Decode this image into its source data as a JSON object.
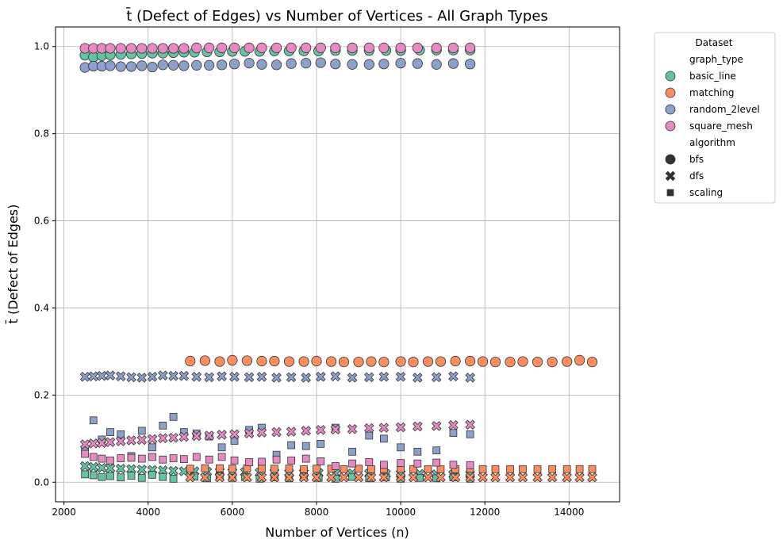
{
  "chart_data": {
    "type": "scatter",
    "title": "t̄ (Defect of Edges) vs Number of Vertices - All Graph Types",
    "xlabel": "Number of Vertices (n)",
    "ylabel": "t̄ (Defect of Edges)",
    "xlim": [
      1800,
      15200
    ],
    "ylim": [
      -0.045,
      1.045
    ],
    "xticks": [
      2000,
      4000,
      6000,
      8000,
      10000,
      12000,
      14000
    ],
    "yticks": [
      0.0,
      0.2,
      0.4,
      0.6,
      0.8,
      1.0
    ],
    "xtick_labels": [
      "2000",
      "4000",
      "6000",
      "8000",
      "10000",
      "12000",
      "14000"
    ],
    "ytick_labels": [
      "0.0",
      "0.2",
      "0.4",
      "0.6",
      "0.8",
      "1.0"
    ],
    "grid": true,
    "legend": {
      "placement": "outside-right-top",
      "title": "Dataset",
      "hue_title": "graph_type",
      "style_title": "algorithm",
      "hue_entries": [
        {
          "label": "basic_line",
          "color": "#66c2a5"
        },
        {
          "label": "matching",
          "color": "#fc8d62"
        },
        {
          "label": "random_2level",
          "color": "#8da0cb"
        },
        {
          "label": "square_mesh",
          "color": "#e78ac3"
        }
      ],
      "style_entries": [
        {
          "label": "bfs",
          "marker": "circle"
        },
        {
          "label": "dfs",
          "marker": "x"
        },
        {
          "label": "scaling",
          "marker": "square"
        }
      ]
    },
    "series": [
      {
        "graph_type": "basic_line",
        "algorithm": "bfs",
        "color": "#66c2a5",
        "marker": "circle",
        "x": [
          2500,
          2700,
          2900,
          3100,
          3350,
          3600,
          3850,
          4100,
          4350,
          4600,
          4850,
          5100,
          5400,
          5700,
          6000,
          6300,
          6650,
          7000,
          7350,
          7700,
          8050,
          8450,
          8850,
          9250,
          9650,
          10000,
          10450,
          10850,
          11250,
          11650
        ],
        "y": [
          0.98,
          0.976,
          0.979,
          0.981,
          0.982,
          0.983,
          0.984,
          0.985,
          0.985,
          0.986,
          0.987,
          0.987,
          0.988,
          0.988,
          0.989,
          0.989,
          0.989,
          0.99,
          0.99,
          0.99,
          0.99,
          0.991,
          0.991,
          0.991,
          0.991,
          0.991,
          0.992,
          0.992,
          0.992,
          0.992
        ]
      },
      {
        "graph_type": "basic_line",
        "algorithm": "dfs",
        "color": "#66c2a5",
        "marker": "x",
        "x": [
          2500,
          2700,
          2900,
          3100,
          3350,
          3600,
          3850,
          4100,
          4350,
          4600,
          4850,
          5100,
          5400,
          5700,
          6000,
          6300,
          6650,
          7000,
          7350,
          7700,
          8050,
          8450,
          8850,
          9250,
          9650,
          10000,
          10450,
          10850,
          11250,
          11650
        ],
        "y": [
          0.037,
          0.035,
          0.033,
          0.032,
          0.031,
          0.03,
          0.029,
          0.028,
          0.027,
          0.026,
          0.025,
          0.025,
          0.024,
          0.024,
          0.023,
          0.023,
          0.022,
          0.022,
          0.021,
          0.021,
          0.021,
          0.02,
          0.02,
          0.02,
          0.019,
          0.019,
          0.019,
          0.018,
          0.018,
          0.018
        ]
      },
      {
        "graph_type": "basic_line",
        "algorithm": "scaling",
        "color": "#66c2a5",
        "marker": "square",
        "x": [
          2500,
          2700,
          2900,
          3100,
          3350,
          3600,
          3850,
          4100,
          4350,
          4600,
          5100,
          5400,
          5700,
          6000,
          6300,
          6650,
          7000,
          7350,
          7700,
          8050,
          8450,
          8850,
          9250,
          9650,
          10000,
          10450,
          10850,
          11250,
          11650
        ],
        "y": [
          0.018,
          0.016,
          0.012,
          0.014,
          0.011,
          0.015,
          0.01,
          0.017,
          0.012,
          0.008,
          0.013,
          0.009,
          0.014,
          0.01,
          0.012,
          0.008,
          0.011,
          0.009,
          0.013,
          0.01,
          0.008,
          0.012,
          0.009,
          0.011,
          0.008,
          0.01,
          0.009,
          0.011,
          0.008
        ]
      },
      {
        "graph_type": "matching",
        "algorithm": "bfs",
        "color": "#fc8d62",
        "marker": "circle",
        "x": [
          5000,
          5350,
          5700,
          6000,
          6350,
          6700,
          7000,
          7350,
          7700,
          8000,
          8350,
          8650,
          9000,
          9300,
          9600,
          10000,
          10300,
          10650,
          10950,
          11300,
          11650,
          11950,
          12250,
          12600,
          12900,
          13250,
          13600,
          13950,
          14250,
          14550
        ],
        "y": [
          0.278,
          0.279,
          0.277,
          0.28,
          0.279,
          0.278,
          0.278,
          0.277,
          0.277,
          0.278,
          0.277,
          0.276,
          0.276,
          0.277,
          0.276,
          0.277,
          0.276,
          0.277,
          0.277,
          0.278,
          0.278,
          0.277,
          0.276,
          0.276,
          0.277,
          0.276,
          0.276,
          0.277,
          0.28,
          0.276
        ]
      },
      {
        "graph_type": "matching",
        "algorithm": "dfs",
        "color": "#fc8d62",
        "marker": "x",
        "x": [
          5000,
          5350,
          5700,
          6000,
          6350,
          6700,
          7000,
          7350,
          7700,
          8000,
          8350,
          8650,
          9000,
          9300,
          9600,
          10000,
          10300,
          10650,
          10950,
          11300,
          11650,
          11950,
          12250,
          12600,
          12900,
          13250,
          13600,
          13950,
          14250,
          14550
        ],
        "y": [
          0.011,
          0.011,
          0.011,
          0.011,
          0.011,
          0.011,
          0.011,
          0.011,
          0.011,
          0.011,
          0.011,
          0.011,
          0.011,
          0.011,
          0.011,
          0.011,
          0.011,
          0.011,
          0.011,
          0.011,
          0.011,
          0.011,
          0.011,
          0.011,
          0.011,
          0.011,
          0.011,
          0.011,
          0.011,
          0.011
        ]
      },
      {
        "graph_type": "matching",
        "algorithm": "scaling",
        "color": "#fc8d62",
        "marker": "square",
        "x": [
          5000,
          5350,
          5700,
          6000,
          6350,
          6700,
          7000,
          7350,
          7700,
          8000,
          8350,
          8650,
          9000,
          9300,
          9600,
          10000,
          10300,
          10650,
          10950,
          11300,
          11650,
          11950,
          12250,
          12600,
          12900,
          13250,
          13600,
          13950,
          14250,
          14550
        ],
        "y": [
          0.031,
          0.032,
          0.032,
          0.031,
          0.032,
          0.031,
          0.031,
          0.031,
          0.03,
          0.031,
          0.031,
          0.03,
          0.031,
          0.03,
          0.03,
          0.031,
          0.03,
          0.03,
          0.03,
          0.03,
          0.031,
          0.03,
          0.03,
          0.03,
          0.03,
          0.03,
          0.03,
          0.03,
          0.03,
          0.03
        ]
      },
      {
        "graph_type": "random_2level",
        "algorithm": "bfs",
        "color": "#8da0cb",
        "marker": "circle",
        "x": [
          2500,
          2700,
          2900,
          3100,
          3350,
          3600,
          3850,
          4100,
          4350,
          4600,
          4850,
          5150,
          5450,
          5750,
          6050,
          6400,
          6700,
          7050,
          7400,
          7750,
          8100,
          8450,
          8850,
          9250,
          9600,
          10000,
          10400,
          10850,
          11250,
          11650
        ],
        "y": [
          0.952,
          0.955,
          0.955,
          0.956,
          0.954,
          0.954,
          0.956,
          0.953,
          0.958,
          0.957,
          0.956,
          0.957,
          0.957,
          0.958,
          0.96,
          0.962,
          0.959,
          0.958,
          0.961,
          0.962,
          0.963,
          0.96,
          0.959,
          0.959,
          0.96,
          0.962,
          0.961,
          0.959,
          0.961,
          0.96
        ]
      },
      {
        "graph_type": "random_2level",
        "algorithm": "dfs",
        "color": "#8da0cb",
        "marker": "x",
        "x": [
          2500,
          2700,
          2900,
          3100,
          3350,
          3600,
          3850,
          4100,
          4350,
          4600,
          4850,
          5150,
          5450,
          5750,
          6050,
          6400,
          6700,
          7050,
          7400,
          7750,
          8100,
          8450,
          8850,
          9250,
          9600,
          10000,
          10400,
          10850,
          11250,
          11650
        ],
        "y": [
          0.242,
          0.243,
          0.244,
          0.245,
          0.243,
          0.241,
          0.24,
          0.242,
          0.245,
          0.244,
          0.244,
          0.242,
          0.241,
          0.243,
          0.242,
          0.241,
          0.242,
          0.24,
          0.241,
          0.24,
          0.242,
          0.243,
          0.24,
          0.241,
          0.242,
          0.242,
          0.24,
          0.241,
          0.243,
          0.24
        ]
      },
      {
        "graph_type": "random_2level",
        "algorithm": "scaling",
        "color": "#8da0cb",
        "marker": "square",
        "x": [
          2500,
          2700,
          2900,
          3100,
          3350,
          3600,
          3850,
          4100,
          4350,
          4600,
          4850,
          5150,
          5450,
          5750,
          6050,
          6400,
          6700,
          7050,
          7400,
          7750,
          8100,
          8450,
          8850,
          9250,
          9600,
          10000,
          10400,
          10850,
          11250,
          11650
        ],
        "y": [
          0.073,
          0.142,
          0.098,
          0.115,
          0.11,
          0.06,
          0.118,
          0.08,
          0.13,
          0.15,
          0.115,
          0.112,
          0.105,
          0.08,
          0.095,
          0.12,
          0.125,
          0.063,
          0.085,
          0.083,
          0.088,
          0.125,
          0.07,
          0.107,
          0.1,
          0.08,
          0.07,
          0.073,
          0.113,
          0.11
        ]
      },
      {
        "graph_type": "square_mesh",
        "algorithm": "bfs",
        "color": "#e78ac3",
        "marker": "circle",
        "x": [
          2500,
          2700,
          2900,
          3100,
          3350,
          3600,
          3850,
          4100,
          4350,
          4600,
          4850,
          5150,
          5450,
          5750,
          6050,
          6400,
          6700,
          7050,
          7400,
          7750,
          8100,
          8450,
          8850,
          9250,
          9600,
          10000,
          10400,
          10850,
          11250,
          11650
        ],
        "y": [
          0.996,
          0.996,
          0.996,
          0.996,
          0.996,
          0.996,
          0.996,
          0.996,
          0.996,
          0.996,
          0.996,
          0.997,
          0.997,
          0.997,
          0.997,
          0.997,
          0.997,
          0.997,
          0.997,
          0.997,
          0.997,
          0.997,
          0.997,
          0.997,
          0.997,
          0.997,
          0.997,
          0.997,
          0.997,
          0.997
        ]
      },
      {
        "graph_type": "square_mesh",
        "algorithm": "dfs",
        "color": "#e78ac3",
        "marker": "x",
        "x": [
          2500,
          2700,
          2900,
          3100,
          3350,
          3600,
          3850,
          4100,
          4350,
          4600,
          4850,
          5150,
          5450,
          5750,
          6050,
          6400,
          6700,
          7050,
          7400,
          7750,
          8100,
          8450,
          8850,
          9250,
          9600,
          10000,
          10400,
          10850,
          11250,
          11650
        ],
        "y": [
          0.087,
          0.089,
          0.09,
          0.092,
          0.094,
          0.096,
          0.097,
          0.099,
          0.101,
          0.102,
          0.104,
          0.106,
          0.107,
          0.109,
          0.11,
          0.112,
          0.114,
          0.115,
          0.116,
          0.118,
          0.12,
          0.121,
          0.122,
          0.124,
          0.125,
          0.126,
          0.128,
          0.129,
          0.131,
          0.132
        ]
      },
      {
        "graph_type": "square_mesh",
        "algorithm": "scaling",
        "color": "#e78ac3",
        "marker": "square",
        "x": [
          2500,
          2700,
          2900,
          3100,
          3350,
          3600,
          3850,
          4100,
          4350,
          4600,
          4850,
          5150,
          5450,
          5750,
          6050,
          6400,
          6700,
          7050,
          7400,
          7750,
          8100,
          8450,
          8850,
          9250,
          9600,
          10000,
          10400,
          10850,
          11250,
          11650
        ],
        "y": [
          0.065,
          0.058,
          0.054,
          0.05,
          0.055,
          0.056,
          0.054,
          0.058,
          0.052,
          0.055,
          0.053,
          0.058,
          0.052,
          0.058,
          0.05,
          0.046,
          0.047,
          0.052,
          0.05,
          0.054,
          0.048,
          0.037,
          0.043,
          0.046,
          0.04,
          0.044,
          0.043,
          0.045,
          0.04,
          0.039
        ]
      }
    ]
  }
}
